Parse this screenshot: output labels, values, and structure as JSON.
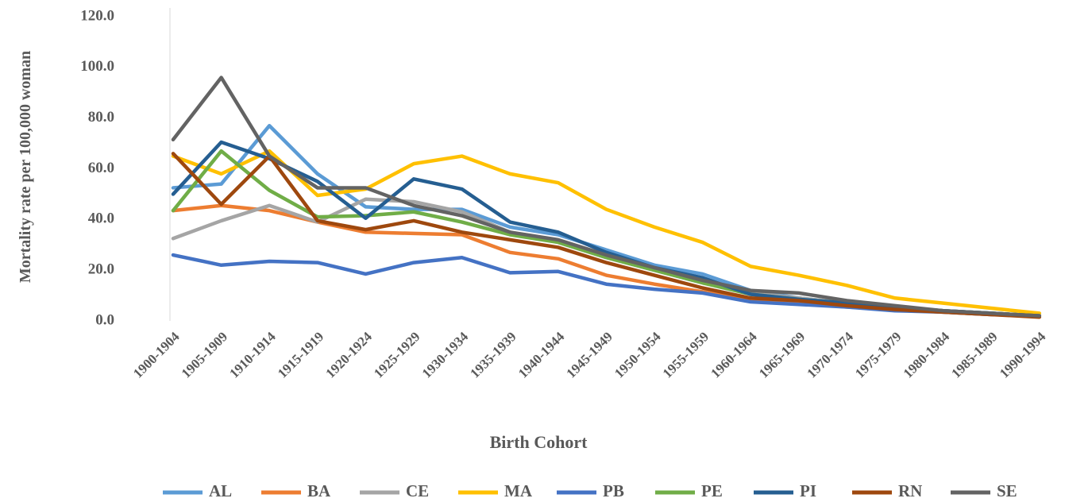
{
  "chart_data": {
    "type": "line",
    "x_label": "Birth Cohort",
    "y_label": "Mortality rate per 100,000 woman",
    "categories": [
      "1900-1904",
      "1905-1909",
      "1910-1914",
      "1915-1919",
      "1920-1924",
      "1925-1929",
      "1930-1934",
      "1935-1939",
      "1940-1944",
      "1945-1949",
      "1950-1954",
      "1955-1959",
      "1960-1964",
      "1965-1969",
      "1970-1974",
      "1975-1979",
      "1980-1984",
      "1985-1989",
      "1990-1994"
    ],
    "ylim": [
      0,
      120
    ],
    "yticks": [
      {
        "value": 0,
        "label": "0.0"
      },
      {
        "value": 20,
        "label": "20.0"
      },
      {
        "value": 40,
        "label": "40.0"
      },
      {
        "value": 60,
        "label": "60.0"
      },
      {
        "value": 80,
        "label": "80.0"
      },
      {
        "value": 100,
        "label": "100.0"
      },
      {
        "value": 120,
        "label": "120.0"
      }
    ],
    "grid": false,
    "legend": "bottom",
    "series": [
      {
        "name": "AL",
        "color": "#5b9bd5",
        "values": [
          52.5,
          54,
          77,
          58,
          45,
          44,
          44,
          37,
          34,
          28,
          22,
          18.5,
          12,
          9,
          7,
          5.5,
          4,
          3,
          2
        ]
      },
      {
        "name": "BA",
        "color": "#ed7d31",
        "values": [
          43.5,
          45.5,
          43.5,
          39,
          35,
          34.5,
          34,
          27,
          24.5,
          18,
          14.5,
          11.5,
          8,
          7,
          5.5,
          4.5,
          3.5,
          2.5,
          2
        ]
      },
      {
        "name": "CE",
        "color": "#a5a5a5",
        "values": [
          32.5,
          39.5,
          45.5,
          39,
          48,
          47,
          43,
          35,
          31,
          25,
          20,
          15,
          11,
          9,
          7,
          5,
          4,
          3,
          2
        ]
      },
      {
        "name": "MA",
        "color": "#ffc000",
        "values": [
          65,
          58,
          67,
          49.5,
          52,
          62,
          65,
          58,
          54.5,
          44,
          37,
          31,
          21.5,
          18,
          14,
          9,
          7,
          5,
          3
        ]
      },
      {
        "name": "PB",
        "color": "#4472c4",
        "values": [
          26,
          22,
          23.5,
          23,
          18.5,
          23,
          25,
          19,
          19.5,
          14.5,
          12.5,
          11,
          7.5,
          6.5,
          5.5,
          4,
          3.5,
          2.5,
          2
        ]
      },
      {
        "name": "PE",
        "color": "#70ad47",
        "values": [
          43.5,
          67,
          51.5,
          41,
          41.5,
          43,
          39,
          34,
          31,
          25,
          20,
          15,
          10.5,
          8.5,
          7,
          5.5,
          4,
          3,
          2
        ]
      },
      {
        "name": "PI",
        "color": "#255e91",
        "values": [
          50,
          70.5,
          64,
          55,
          40.5,
          56,
          52,
          39,
          35,
          27,
          21,
          17,
          10.5,
          8.5,
          7,
          5.5,
          4,
          3,
          2
        ]
      },
      {
        "name": "RN",
        "color": "#9e480e",
        "values": [
          66,
          46,
          65,
          39.5,
          36,
          39.5,
          35,
          32,
          29,
          23,
          18,
          13,
          9,
          8,
          6,
          4.5,
          3.5,
          2.5,
          1.5
        ]
      },
      {
        "name": "SE",
        "color": "#636363",
        "values": [
          71.5,
          96,
          65,
          52.5,
          52.5,
          45.5,
          41.5,
          35,
          32,
          26,
          21,
          16,
          12,
          11,
          8,
          6,
          4,
          3,
          2
        ]
      }
    ]
  }
}
